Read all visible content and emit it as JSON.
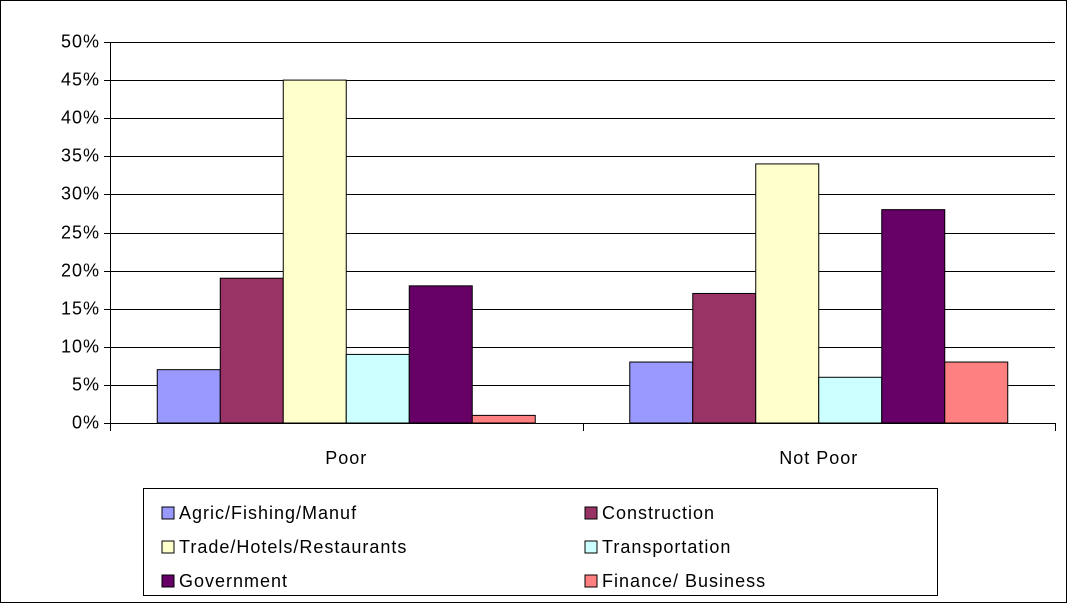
{
  "chart_data": {
    "type": "bar",
    "categories": [
      "Poor",
      "Not Poor"
    ],
    "series": [
      {
        "name": "Agric/Fishing/Manuf",
        "color": "#9999ff",
        "values": [
          7,
          8
        ]
      },
      {
        "name": "Construction",
        "color": "#993366",
        "values": [
          19,
          17
        ]
      },
      {
        "name": "Trade/Hotels/Restaurants",
        "color": "#ffffcc",
        "values": [
          45,
          34
        ]
      },
      {
        "name": "Transportation",
        "color": "#ccffff",
        "values": [
          9,
          6
        ]
      },
      {
        "name": "Government",
        "color": "#660066",
        "values": [
          18,
          28
        ]
      },
      {
        "name": "Finance/ Business",
        "color": "#ff8080",
        "values": [
          1,
          8
        ]
      }
    ],
    "ylim": [
      0,
      50
    ],
    "yticks": [
      {
        "value": 0,
        "label": "0%"
      },
      {
        "value": 5,
        "label": "5%"
      },
      {
        "value": 10,
        "label": "10%"
      },
      {
        "value": 15,
        "label": "15%"
      },
      {
        "value": 20,
        "label": "20%"
      },
      {
        "value": 25,
        "label": "25%"
      },
      {
        "value": 30,
        "label": "30%"
      },
      {
        "value": 35,
        "label": "35%"
      },
      {
        "value": 40,
        "label": "40%"
      },
      {
        "value": 45,
        "label": "45%"
      },
      {
        "value": 50,
        "label": "50%"
      }
    ],
    "grid": true,
    "legend": "bottom"
  }
}
